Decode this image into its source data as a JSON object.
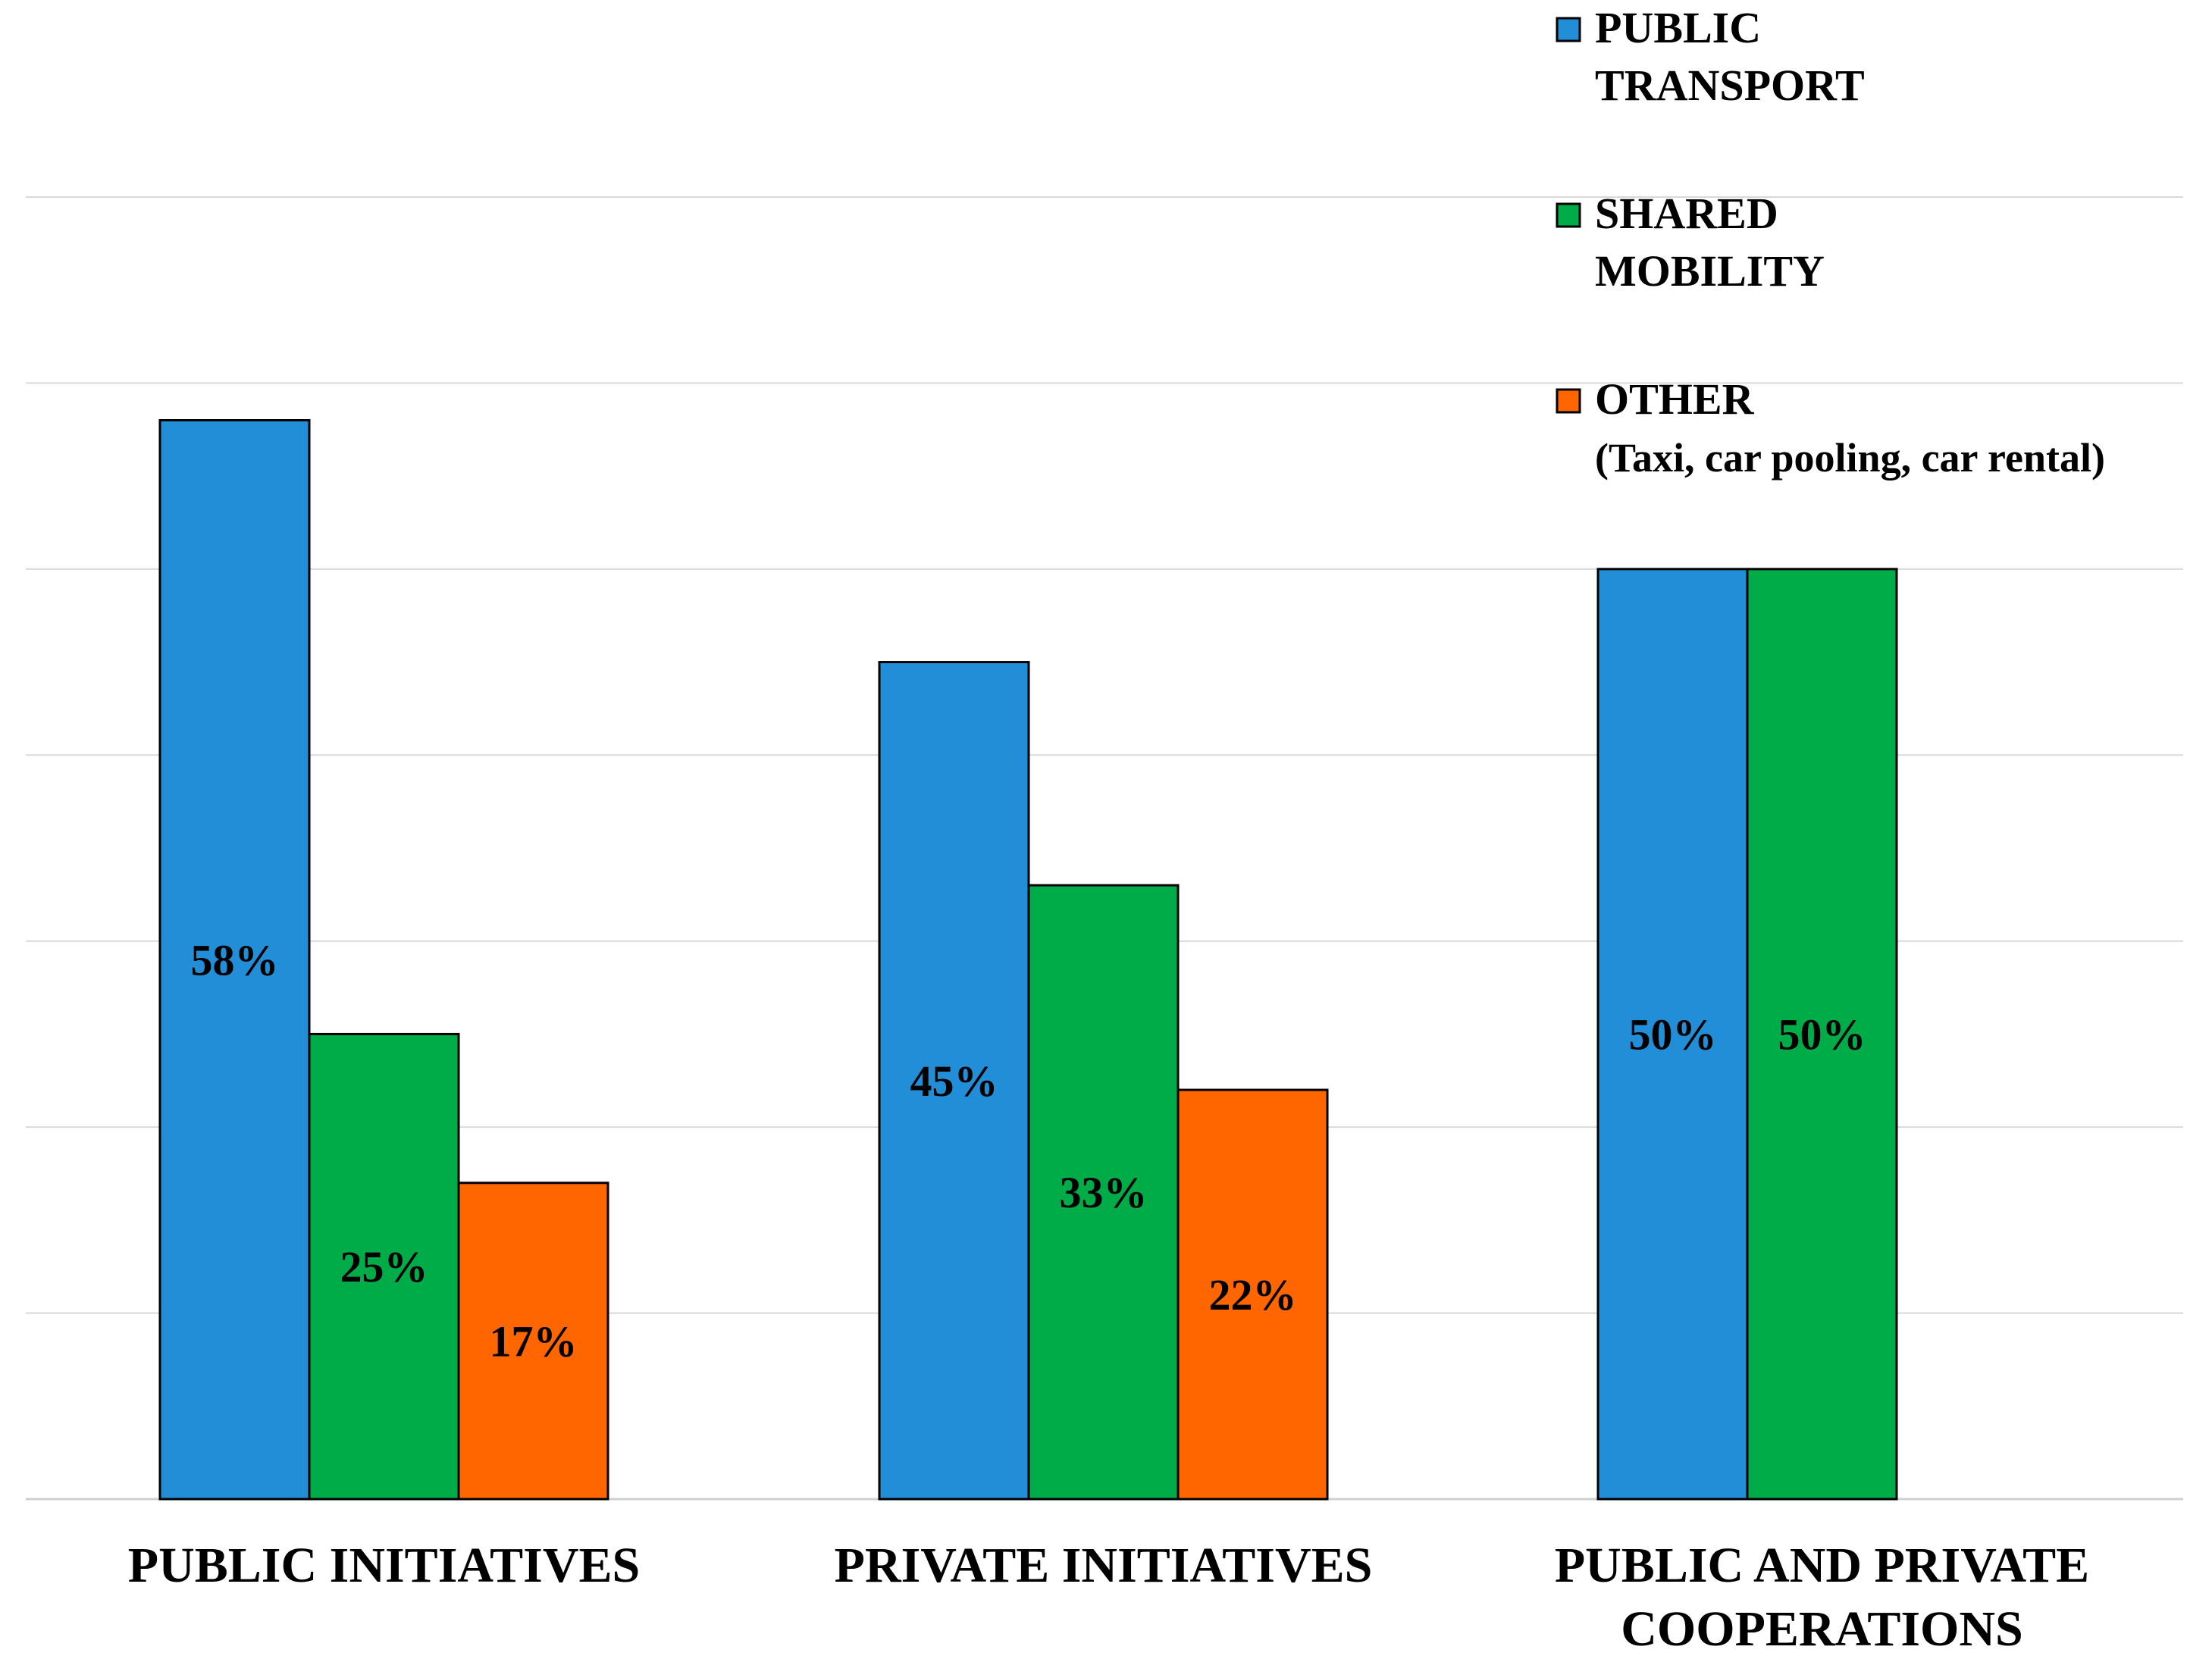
{
  "chart_data": {
    "type": "bar",
    "title": "",
    "xlabel": "",
    "ylabel": "",
    "ylim": [
      0,
      70
    ],
    "grid": true,
    "legend_position": "top-right",
    "categories": [
      [
        "PUBLIC INITIATIVES"
      ],
      [
        "PRIVATE INITIATIVES"
      ],
      [
        "PUBLIC AND PRIVATE",
        "COOPERATIONS"
      ]
    ],
    "series": [
      {
        "name": "PUBLIC TRANSPORT",
        "legend_lines": [
          "PUBLIC",
          "TRANSPORT"
        ],
        "color": "#228ED8",
        "values": [
          58,
          45,
          50
        ],
        "labels": [
          "58%",
          "45%",
          "50%"
        ]
      },
      {
        "name": "SHARED MOBILITY",
        "legend_lines": [
          "SHARED",
          "MOBILITY"
        ],
        "color": "#00AC47",
        "values": [
          25,
          33,
          50
        ],
        "labels": [
          "25%",
          "33%",
          "50%"
        ]
      },
      {
        "name": "OTHER (Taxi, car pooling, car rental)",
        "legend_lines": [
          "OTHER",
          "(Taxi, car pooling, car rental)"
        ],
        "color": "#FF6600",
        "values": [
          17,
          22,
          null
        ],
        "labels": [
          "17%",
          "22%",
          ""
        ]
      }
    ]
  }
}
